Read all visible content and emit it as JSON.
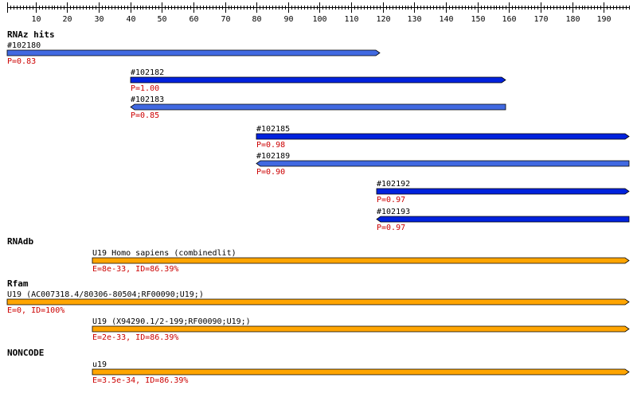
{
  "axis": {
    "min": 1,
    "max": 198,
    "ticks": [
      10,
      20,
      30,
      40,
      50,
      60,
      70,
      80,
      90,
      100,
      110,
      120,
      130,
      140,
      150,
      160,
      170,
      180,
      190
    ]
  },
  "colors": {
    "rnaz_light": "#4169e1",
    "rnaz_dark": "#0022dd",
    "orange": "#ffa500",
    "score": "#cc0000"
  },
  "sections": [
    {
      "id": "rnaz",
      "title": "RNAz hits",
      "features": [
        {
          "label": "#102180",
          "score": "P=0.83",
          "start": 1,
          "end": 119,
          "strand": "+",
          "color": "#4169e1"
        },
        {
          "label": "#102182",
          "score": "P=1.00",
          "start": 40,
          "end": 159,
          "strand": "+",
          "color": "#0022dd"
        },
        {
          "label": "#102183",
          "score": "P=0.85",
          "start": 40,
          "end": 159,
          "strand": "-",
          "color": "#4169e1"
        },
        {
          "label": "#102185",
          "score": "P=0.98",
          "start": 80,
          "end": 198,
          "strand": "+",
          "color": "#0022dd"
        },
        {
          "label": "#102189",
          "score": "P=0.90",
          "start": 80,
          "end": 198,
          "strand": "-",
          "color": "#4169e1"
        },
        {
          "label": "#102192",
          "score": "P=0.97",
          "start": 118,
          "end": 198,
          "strand": "+",
          "color": "#0022dd"
        },
        {
          "label": "#102193",
          "score": "P=0.97",
          "start": 118,
          "end": 198,
          "strand": "-",
          "color": "#0022dd"
        }
      ]
    },
    {
      "id": "rnadb",
      "title": "RNAdb",
      "features": [
        {
          "label": "U19 Homo sapiens (combinedlit)",
          "score": "E=8e-33, ID=86.39%",
          "start": 28,
          "end": 198,
          "strand": "+",
          "color": "#ffa500"
        }
      ]
    },
    {
      "id": "rfam",
      "title": "Rfam",
      "features": [
        {
          "label": "U19 (AC007318.4/80306-80504;RF00090;U19;)",
          "score": "E=0, ID=100%",
          "start": 1,
          "end": 198,
          "strand": "+",
          "color": "#ffa500"
        },
        {
          "label": "U19 (X94290.1/2-199;RF00090;U19;)",
          "score": "E=2e-33, ID=86.39%",
          "start": 28,
          "end": 198,
          "strand": "+",
          "color": "#ffa500"
        }
      ]
    },
    {
      "id": "noncode",
      "title": "NONCODE",
      "features": [
        {
          "label": "u19",
          "score": "E=3.5e-34, ID=86.39%",
          "start": 28,
          "end": 198,
          "strand": "+",
          "color": "#ffa500"
        }
      ]
    }
  ]
}
